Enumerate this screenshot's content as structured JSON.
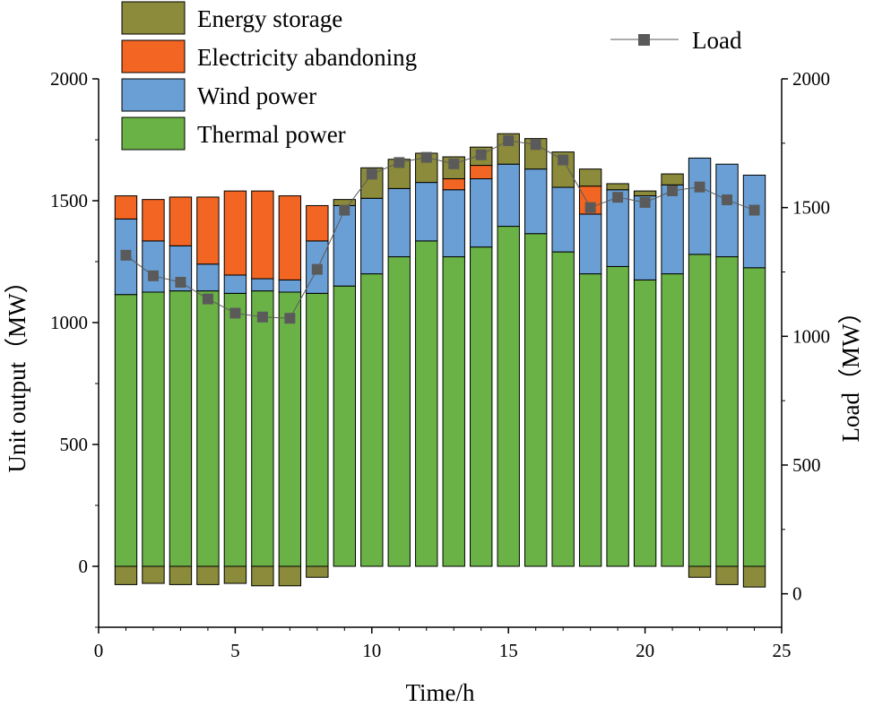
{
  "chart_data": {
    "type": "bar",
    "stacked": true,
    "x": [
      1,
      2,
      3,
      4,
      5,
      6,
      7,
      8,
      9,
      10,
      11,
      12,
      13,
      14,
      15,
      16,
      17,
      18,
      19,
      20,
      21,
      22,
      23,
      24
    ],
    "series": [
      {
        "name": "Thermal power",
        "color": "#6bb246",
        "values": [
          1115,
          1125,
          1130,
          1130,
          1120,
          1130,
          1125,
          1120,
          1150,
          1200,
          1270,
          1335,
          1270,
          1310,
          1395,
          1365,
          1290,
          1200,
          1230,
          1175,
          1200,
          1280,
          1270,
          1225
        ]
      },
      {
        "name": "Wind power",
        "color": "#6a9fd5",
        "values": [
          310,
          210,
          185,
          110,
          75,
          50,
          50,
          215,
          330,
          310,
          280,
          240,
          275,
          280,
          255,
          265,
          265,
          245,
          315,
          345,
          365,
          395,
          380,
          380
        ]
      },
      {
        "name": "Electricity abandoning",
        "color": "#f26522",
        "values": [
          95,
          170,
          200,
          275,
          345,
          360,
          345,
          145,
          0,
          0,
          0,
          0,
          45,
          55,
          0,
          0,
          0,
          115,
          0,
          0,
          0,
          0,
          0,
          0
        ]
      },
      {
        "name": "Energy storage",
        "color": "#8b8b3b",
        "values": [
          -75,
          -70,
          -75,
          -75,
          -70,
          -80,
          -80,
          -45,
          25,
          125,
          120,
          120,
          90,
          75,
          125,
          125,
          145,
          70,
          25,
          20,
          45,
          -45,
          -75,
          -85
        ]
      }
    ],
    "line_series": {
      "name": "Load",
      "color": "#5a5a5a",
      "axis": "right",
      "values": [
        1315,
        1235,
        1210,
        1145,
        1090,
        1075,
        1070,
        1260,
        1490,
        1630,
        1675,
        1695,
        1670,
        1705,
        1760,
        1745,
        1685,
        1500,
        1540,
        1520,
        1565,
        1580,
        1530,
        1490
      ]
    },
    "xlabel": "Time/h",
    "ylabel_left": "Unit output（MW）",
    "ylabel_right": "Load（MW）",
    "xlim": [
      0,
      25
    ],
    "x_ticks": [
      "0",
      "5",
      "10",
      "15",
      "20",
      "25"
    ],
    "ylim_left": [
      -250,
      2000
    ],
    "y_ticks_left": [
      "0",
      "500",
      "1000",
      "1500",
      "2000"
    ],
    "ylim_right": [
      -130,
      2000
    ],
    "y_ticks_right": [
      "0",
      "500",
      "1000",
      "1500",
      "2000"
    ],
    "legend_order": [
      "Energy storage",
      "Electricity abandoning",
      "Wind power",
      "Thermal power"
    ],
    "legend_line_label": "Load"
  }
}
